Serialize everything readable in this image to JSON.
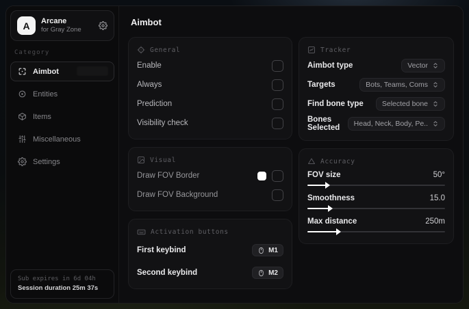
{
  "app": {
    "logo_letter": "A",
    "title": "Arcane",
    "subtitle": "for Gray Zone"
  },
  "sidebar": {
    "category_label": "Category",
    "items": [
      {
        "label": "Aimbot",
        "icon": "crosshair-icon",
        "active": true
      },
      {
        "label": "Entities",
        "icon": "entities-icon",
        "active": false
      },
      {
        "label": "Items",
        "icon": "box-icon",
        "active": false
      },
      {
        "label": "Miscellaneous",
        "icon": "misc-icon",
        "active": false
      },
      {
        "label": "Settings",
        "icon": "gear-icon",
        "active": false
      }
    ],
    "footer": {
      "sub_expires": "Sub expires in 6d 04h",
      "session_duration": "Session duration 25m 37s"
    }
  },
  "main": {
    "title": "Aimbot"
  },
  "general": {
    "title": "General",
    "rows": [
      {
        "label": "Enable",
        "checked": false
      },
      {
        "label": "Always",
        "checked": false
      },
      {
        "label": "Prediction",
        "checked": false
      },
      {
        "label": "Visibility check",
        "checked": false
      }
    ]
  },
  "visual": {
    "title": "Visual",
    "rows": [
      {
        "label": "Draw FOV Border",
        "color": "#ffffff",
        "checked": false
      },
      {
        "label": "Draw FOV Background",
        "checked": false
      }
    ]
  },
  "activation": {
    "title": "Activation buttons",
    "rows": [
      {
        "label": "First keybind",
        "bind": "M1"
      },
      {
        "label": "Second keybind",
        "bind": "M2"
      }
    ]
  },
  "tracker": {
    "title": "Tracker",
    "rows": [
      {
        "label": "Aimbot type",
        "value": "Vector"
      },
      {
        "label": "Targets",
        "value": "Bots, Teams, Coms"
      },
      {
        "label": "Find bone type",
        "value": "Selected bone"
      },
      {
        "label": "Bones Selected",
        "value": "Head, Neck, Body, Pe.."
      }
    ]
  },
  "accuracy": {
    "title": "Accuracy",
    "rows": [
      {
        "label": "FOV size",
        "value": "50°",
        "fill": "14%"
      },
      {
        "label": "Smoothness",
        "value": "15.0",
        "fill": "16%"
      },
      {
        "label": "Max distance",
        "value": "250m",
        "fill": "22%"
      }
    ]
  },
  "colors": {
    "accent": "#ffffff",
    "window_bg": "#0b0b0c",
    "card_bg": "#121214"
  }
}
